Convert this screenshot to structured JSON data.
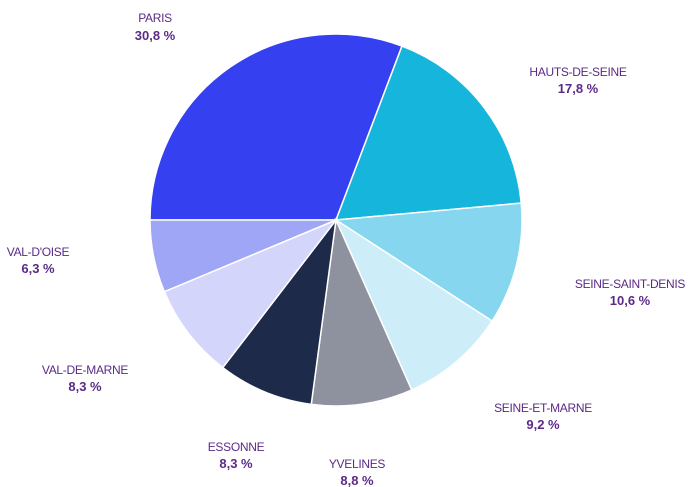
{
  "chart_data": {
    "type": "pie",
    "slices": [
      {
        "label": "PARIS",
        "value": 30.8,
        "value_label": "30,8 %",
        "color": "#3540f0"
      },
      {
        "label": "HAUTS-DE-SEINE",
        "value": 17.8,
        "value_label": "17,8 %",
        "color": "#16b6dc"
      },
      {
        "label": "SEINE-SAINT-DENIS",
        "value": 10.6,
        "value_label": "10,6 %",
        "color": "#85d6ee"
      },
      {
        "label": "SEINE-ET-MARNE",
        "value": 9.2,
        "value_label": "9,2 %",
        "color": "#cdeef8"
      },
      {
        "label": "YVELINES",
        "value": 8.8,
        "value_label": "8,8 %",
        "color": "#8e919e"
      },
      {
        "label": "ESSONNE",
        "value": 8.3,
        "value_label": "8,3 %",
        "color": "#1e2a4a"
      },
      {
        "label": "VAL-DE-MARNE",
        "value": 8.3,
        "value_label": "8,3 %",
        "color": "#d4d5fb"
      },
      {
        "label": "VAL-D'OISE",
        "value": 6.3,
        "value_label": "6,3 %",
        "color": "#9ea6f5"
      }
    ],
    "start_position": "9 o'clock",
    "direction": "clockwise",
    "legend": "none",
    "labels": "outside"
  }
}
